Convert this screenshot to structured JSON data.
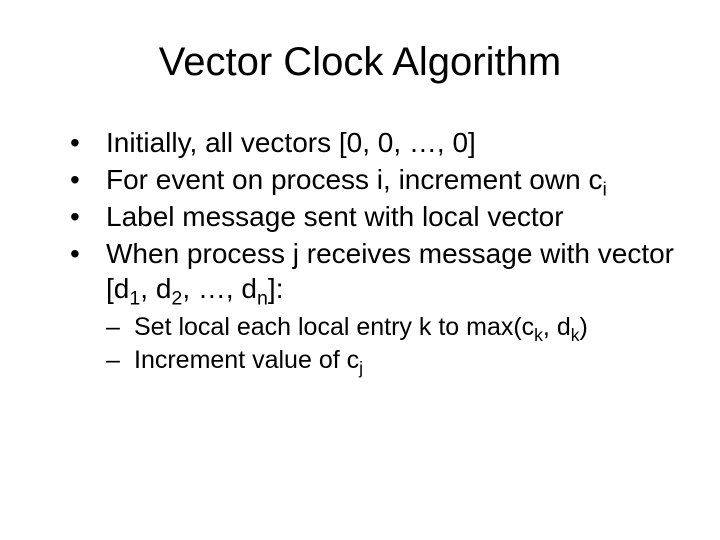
{
  "title": "Vector Clock Algorithm",
  "bullets": {
    "b1": "Initially, all vectors [0, 0, …, 0]",
    "b2_pre": "For event on process i, increment own c",
    "b2_sub": "i",
    "b3": "Label message sent with local vector",
    "b4_pre": "When process j receives message with vector  [d",
    "b4_s1": "1",
    "b4_m1": ", d",
    "b4_s2": "2",
    "b4_m2": ", …, d",
    "b4_s3": "n",
    "b4_post": "]:",
    "s1_pre": "Set local each local entry k to max(c",
    "s1_sub1": "k",
    "s1_mid": ", d",
    "s1_sub2": "k",
    "s1_post": ")",
    "s2_pre": "Increment value of c",
    "s2_sub": "j"
  }
}
